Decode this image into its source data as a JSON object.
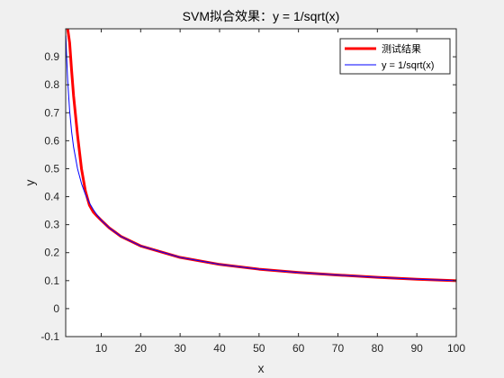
{
  "chart_data": {
    "type": "line",
    "title": "SVM拟合效果：y = 1/sqrt(x)",
    "xlabel": "x",
    "ylabel": "y",
    "xlim": [
      1,
      100
    ],
    "ylim": [
      -0.1,
      1.0
    ],
    "xticks": [
      10,
      20,
      30,
      40,
      50,
      60,
      70,
      80,
      90,
      100
    ],
    "yticks": [
      -0.1,
      0,
      0.1,
      0.2,
      0.3,
      0.4,
      0.5,
      0.6,
      0.7,
      0.8,
      0.9
    ],
    "xtick_labels": [
      "10",
      "20",
      "30",
      "40",
      "50",
      "60",
      "70",
      "80",
      "90",
      "100"
    ],
    "ytick_labels": [
      "-0.1",
      "0",
      "0.1",
      "0.2",
      "0.3",
      "0.4",
      "0.5",
      "0.6",
      "0.7",
      "0.8",
      "0.9"
    ],
    "legend_position": "top-right",
    "grid": false,
    "series": [
      {
        "name": "测试结果",
        "color": "#ff0000",
        "x": [
          1.5,
          2,
          2.5,
          3,
          4,
          5,
          6,
          7,
          8,
          9,
          10,
          12,
          15,
          20,
          30,
          40,
          50,
          60,
          70,
          80,
          90,
          100
        ],
        "y": [
          1.0,
          0.95,
          0.85,
          0.76,
          0.62,
          0.5,
          0.42,
          0.37,
          0.345,
          0.33,
          0.316,
          0.289,
          0.258,
          0.224,
          0.183,
          0.158,
          0.141,
          0.129,
          0.12,
          0.112,
          0.105,
          0.1
        ]
      },
      {
        "name": "y = 1/sqrt(x)",
        "color": "#0000ff",
        "x": [
          1.05,
          1.2,
          1.5,
          2,
          2.5,
          3,
          4,
          5,
          6,
          7,
          8,
          9,
          10,
          12,
          15,
          20,
          30,
          40,
          50,
          60,
          70,
          80,
          90,
          100
        ],
        "y": [
          0.976,
          0.913,
          0.816,
          0.707,
          0.632,
          0.577,
          0.5,
          0.447,
          0.408,
          0.378,
          0.354,
          0.333,
          0.316,
          0.289,
          0.258,
          0.224,
          0.183,
          0.158,
          0.141,
          0.129,
          0.12,
          0.112,
          0.105,
          0.1
        ]
      }
    ]
  }
}
